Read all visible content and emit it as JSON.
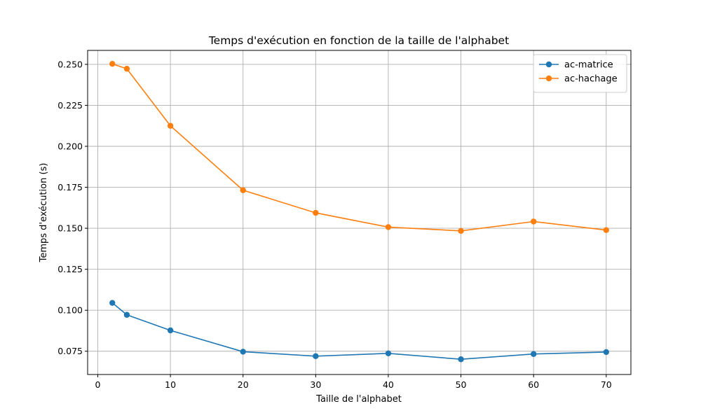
{
  "chart_data": {
    "type": "line",
    "title": "Temps d'exécution en fonction de la taille de l'alphabet",
    "xlabel": "Taille de l'alphabet",
    "ylabel": "Temps d'exécution (s)",
    "xlim": [
      -1.4,
      73.4
    ],
    "ylim": [
      0.0608,
      0.2585
    ],
    "xticks": [
      0,
      10,
      20,
      30,
      40,
      50,
      60,
      70
    ],
    "yticks": [
      0.075,
      0.1,
      0.125,
      0.15,
      0.175,
      0.2,
      0.225,
      0.25
    ],
    "ytick_labels": [
      "0.075",
      "0.100",
      "0.125",
      "0.150",
      "0.175",
      "0.200",
      "0.225",
      "0.250"
    ],
    "grid": true,
    "legend_position": "top-right",
    "x": [
      2,
      4,
      10,
      20,
      30,
      40,
      50,
      60,
      70
    ],
    "series": [
      {
        "name": "ac-matrice",
        "color": "#1f77b4",
        "values": [
          0.1045,
          0.0972,
          0.0877,
          0.0747,
          0.072,
          0.0737,
          0.0701,
          0.0733,
          0.0745
        ]
      },
      {
        "name": "ac-hachage",
        "color": "#ff7f0e",
        "values": [
          0.2503,
          0.2473,
          0.2125,
          0.1732,
          0.1594,
          0.1507,
          0.1484,
          0.1541,
          0.1489
        ]
      }
    ]
  }
}
